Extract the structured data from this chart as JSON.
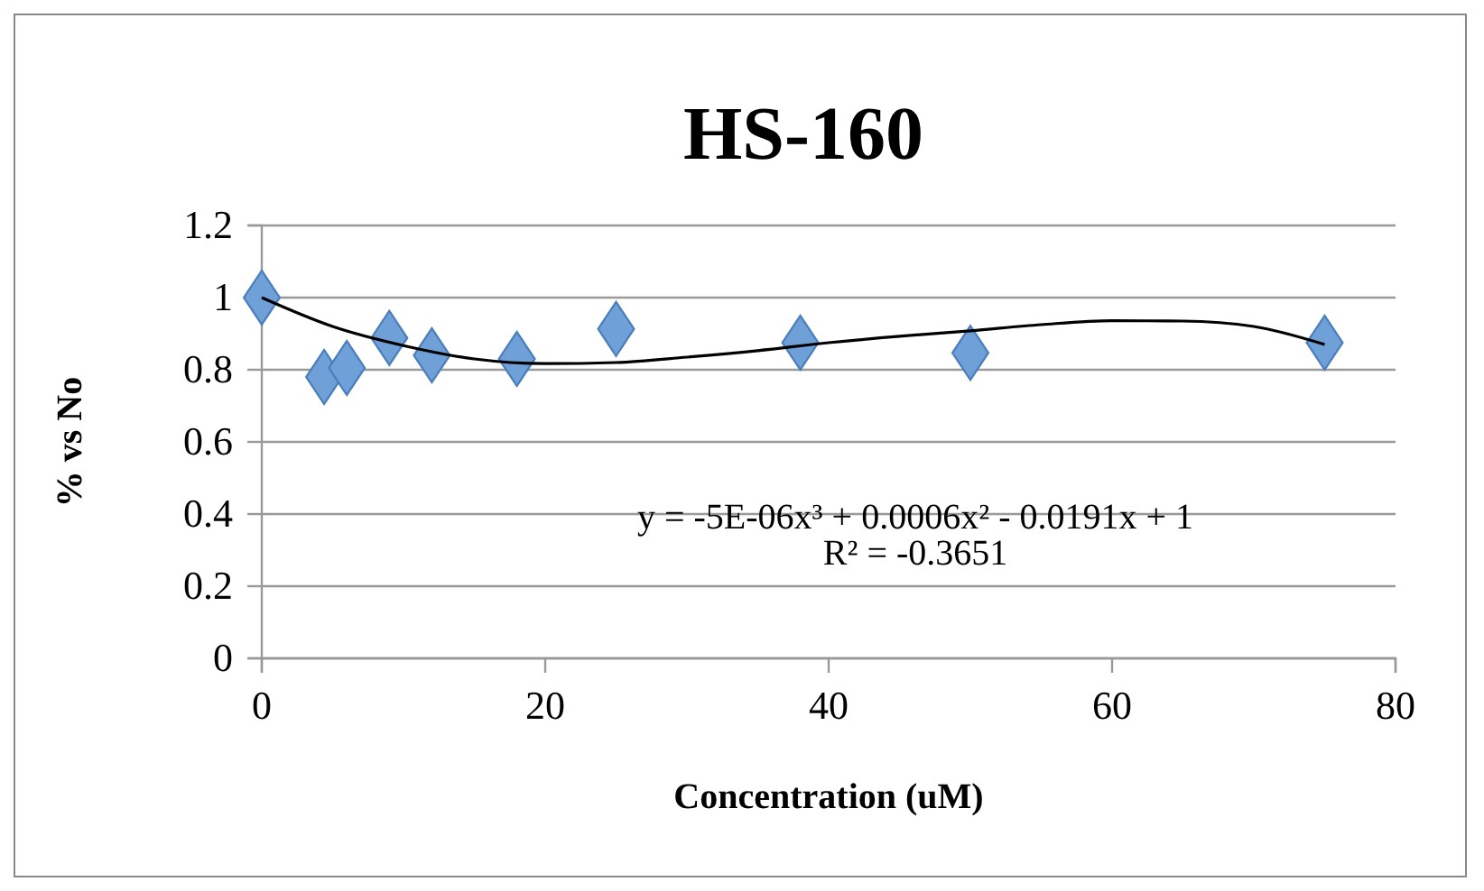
{
  "chart_data": {
    "type": "scatter",
    "title": "HS-160",
    "xlabel": "Concentration (uM)",
    "ylabel": "% vs No",
    "xlim": [
      0,
      80
    ],
    "xticks": [
      0,
      20,
      40,
      60,
      80
    ],
    "ylim": [
      0,
      1.2
    ],
    "yticks": [
      0,
      0.2,
      0.4,
      0.6,
      0.8,
      1,
      1.2
    ],
    "grid": "y",
    "annotations": [
      "y = -5E-06x³ + 0.0006x² - 0.0191x + 1",
      "R² = -0.3651"
    ],
    "series": [
      {
        "color": "#6fa0d8",
        "marker": "diamond",
        "x": [
          0,
          4.4,
          6,
          9,
          12,
          18,
          25,
          38,
          50,
          75
        ],
        "values": [
          1,
          0.78,
          0.805,
          0.888,
          0.84,
          0.83,
          0.913,
          0.875,
          0.847,
          0.875
        ]
      },
      {
        "type": "line",
        "color": "#000000",
        "marker": "none",
        "line_style": "solid",
        "x": [
          0,
          5,
          10,
          15,
          20,
          25,
          30,
          35,
          40,
          45,
          50,
          55,
          60,
          65,
          70,
          75
        ],
        "values": [
          1,
          0.92,
          0.867,
          0.83,
          0.817,
          0.82,
          0.835,
          0.853,
          0.875,
          0.893,
          0.908,
          0.925,
          0.936,
          0.935,
          0.92,
          0.87
        ]
      }
    ]
  }
}
